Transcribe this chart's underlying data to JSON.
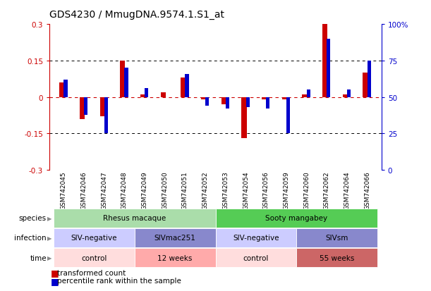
{
  "title": "GDS4230 / MmugDNA.9574.1.S1_at",
  "samples": [
    "GSM742045",
    "GSM742046",
    "GSM742047",
    "GSM742048",
    "GSM742049",
    "GSM742050",
    "GSM742051",
    "GSM742052",
    "GSM742053",
    "GSM742054",
    "GSM742056",
    "GSM742059",
    "GSM742060",
    "GSM742062",
    "GSM742064",
    "GSM742066"
  ],
  "red_values": [
    0.06,
    -0.09,
    -0.08,
    0.15,
    0.01,
    0.02,
    0.08,
    -0.01,
    -0.03,
    -0.17,
    -0.01,
    -0.01,
    0.01,
    0.3,
    0.01,
    0.1
  ],
  "blue_pct": [
    62,
    38,
    25,
    70,
    56,
    50,
    66,
    44,
    42,
    43,
    42,
    25,
    55,
    90,
    55,
    75
  ],
  "ylim": [
    -0.3,
    0.3
  ],
  "red_color": "#cc0000",
  "blue_color": "#0000cc",
  "species_labels": [
    {
      "text": "Rhesus macaque",
      "start": 0,
      "end": 7,
      "color": "#aaddaa"
    },
    {
      "text": "Sooty mangabey",
      "start": 8,
      "end": 15,
      "color": "#55cc55"
    }
  ],
  "infection_labels": [
    {
      "text": "SIV-negative",
      "start": 0,
      "end": 3,
      "color": "#ccccff"
    },
    {
      "text": "SIVmac251",
      "start": 4,
      "end": 7,
      "color": "#8888cc"
    },
    {
      "text": "SIV-negative",
      "start": 8,
      "end": 11,
      "color": "#ccccff"
    },
    {
      "text": "SIVsm",
      "start": 12,
      "end": 15,
      "color": "#8888cc"
    }
  ],
  "time_labels": [
    {
      "text": "control",
      "start": 0,
      "end": 3,
      "color": "#ffdddd"
    },
    {
      "text": "12 weeks",
      "start": 4,
      "end": 7,
      "color": "#ffaaaa"
    },
    {
      "text": "control",
      "start": 8,
      "end": 11,
      "color": "#ffdddd"
    },
    {
      "text": "55 weeks",
      "start": 12,
      "end": 15,
      "color": "#cc6666"
    }
  ],
  "legend_red": "transformed count",
  "legend_blue": "percentile rank within the sample"
}
